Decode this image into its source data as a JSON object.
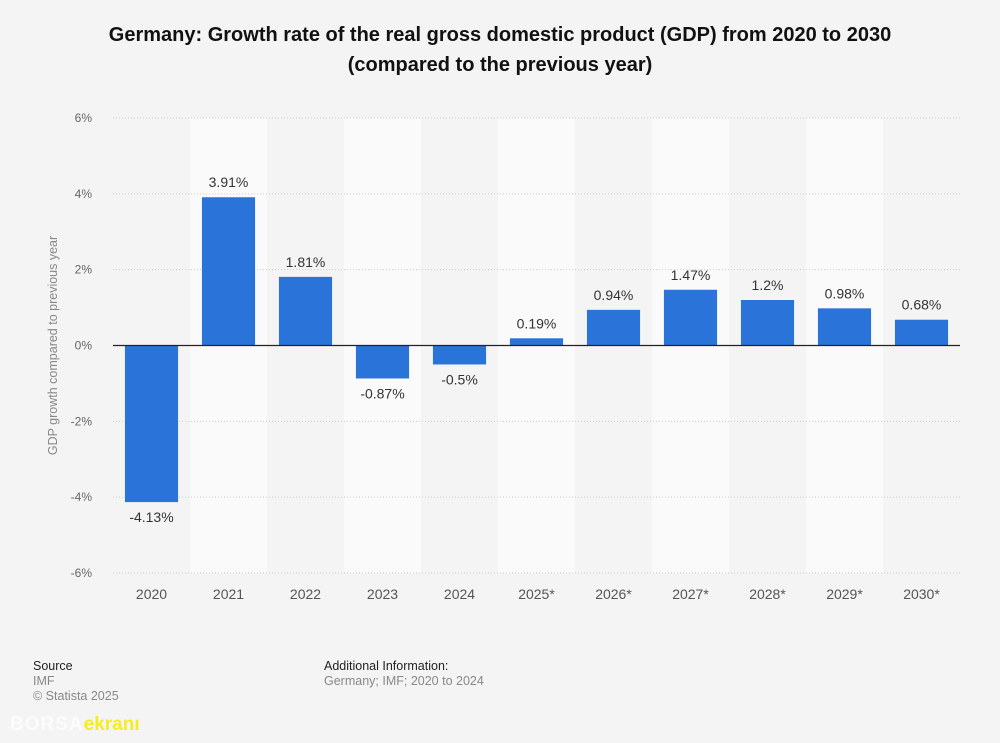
{
  "title_line1": "Germany: Growth rate of the real gross domestic product (GDP) from 2020 to 2030",
  "title_line2": "(compared to the previous year)",
  "colors": {
    "bar": "#2a73d9",
    "background": "#f4f4f4",
    "stripe": "#fafafa",
    "grid": "#cccccc",
    "zero_line": "#222222",
    "tick_text": "#666666",
    "label_text": "#333333"
  },
  "chart_data": {
    "type": "bar",
    "title": "Germany: Growth rate of the real gross domestic product (GDP) from 2020 to 2030 (compared to the previous year)",
    "xlabel": "",
    "ylabel": "GDP growth compared to previous year",
    "categories": [
      "2020",
      "2021",
      "2022",
      "2023",
      "2024",
      "2025*",
      "2026*",
      "2027*",
      "2028*",
      "2029*",
      "2030*"
    ],
    "values": [
      -4.13,
      3.91,
      1.81,
      -0.87,
      -0.5,
      0.19,
      0.94,
      1.47,
      1.2,
      0.98,
      0.68
    ],
    "data_labels": [
      "-4.13%",
      "3.91%",
      "1.81%",
      "-0.87%",
      "-0.5%",
      "0.19%",
      "0.94%",
      "1.47%",
      "1.2%",
      "0.98%",
      "0.68%"
    ],
    "ylim": [
      -6,
      6
    ],
    "yticks": [
      6,
      4,
      2,
      0,
      -2,
      -4,
      -6
    ],
    "ytick_labels": [
      "6%",
      "4%",
      "2%",
      "0%",
      "-2%",
      "-4%",
      "-6%"
    ],
    "grid": true,
    "legend": "none"
  },
  "footer": {
    "source_label": "Source",
    "source_value": "IMF",
    "copyright": "© Statista 2025",
    "additional_label": "Additional Information:",
    "additional_value": "Germany; IMF; 2020 to 2024"
  },
  "watermark": {
    "part1": "BORSA",
    "part2": "ekranı"
  }
}
